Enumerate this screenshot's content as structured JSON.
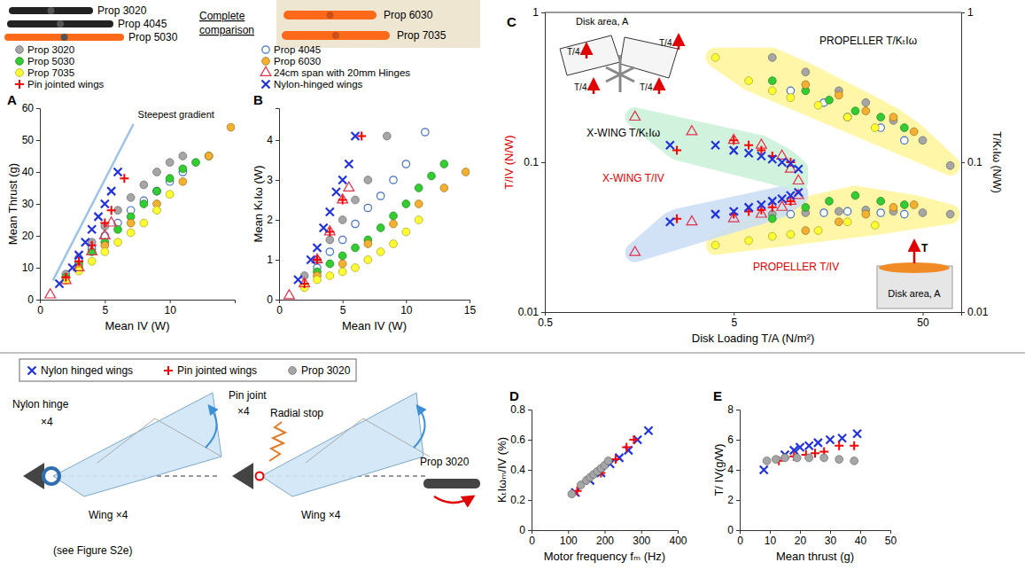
{
  "figure": {
    "photos": {
      "labels": [
        "Prop 3020",
        "Prop 4045",
        "Prop 5030",
        "Prop 6030",
        "Prop 7035"
      ],
      "heading": "Complete comparison"
    },
    "diagrams": {
      "nylon": {
        "label": "Nylon hinge",
        "count": "×4",
        "wing": "Wing ×4",
        "note": "(see Figure S2e)"
      },
      "pin": {
        "label": "Pin joint",
        "count": "×4",
        "stop": "Radial stop",
        "wing": "Wing ×4"
      },
      "prop": {
        "label": "Prop 3020"
      }
    }
  },
  "chart_data": [
    {
      "type": "scatter",
      "panel": "A",
      "xlabel": "Mean IV (W)",
      "ylabel": "Mean Thrust (g)",
      "xlim": [
        0,
        15
      ],
      "ylim": [
        0,
        60
      ],
      "xticks": [
        0,
        5,
        10
      ],
      "yticks": [
        0,
        10,
        20,
        30,
        40,
        50,
        60
      ],
      "grid": false,
      "legend": "top",
      "annotation": {
        "text": "Steepest gradient",
        "x": [
          1,
          7.2
        ],
        "y": [
          6,
          55
        ]
      },
      "series": [
        {
          "name": "Prop 3020",
          "color": "#a6a6a6",
          "marker": "circle",
          "x": [
            2,
            3,
            4,
            5,
            6,
            7,
            8,
            9,
            10,
            11
          ],
          "values": [
            8,
            13,
            18,
            23,
            28,
            32,
            36,
            40,
            43,
            45
          ]
        },
        {
          "name": "Prop 4045",
          "color": "#4472c4",
          "marker": "circle-open",
          "x": [
            3,
            4,
            5,
            6,
            7,
            8,
            9,
            10,
            11
          ],
          "values": [
            12,
            16,
            20,
            24,
            28,
            31,
            34,
            37,
            40
          ]
        },
        {
          "name": "Prop 5030",
          "color": "#33cc33",
          "marker": "circle",
          "x": [
            2,
            3,
            4,
            5,
            6,
            7,
            8,
            9,
            10,
            11,
            12,
            13
          ],
          "values": [
            7,
            11,
            15,
            18,
            22,
            26,
            30,
            34,
            38,
            41,
            43,
            45
          ]
        },
        {
          "name": "Prop 6030",
          "color": "#f4b030",
          "marker": "circle",
          "x": [
            3,
            5,
            7,
            9,
            11,
            13,
            14.7
          ],
          "values": [
            10,
            17,
            24,
            30,
            37,
            45,
            54
          ]
        },
        {
          "name": "Prop 7035",
          "color": "#ffff33",
          "marker": "circle",
          "x": [
            2,
            3,
            4,
            5,
            6,
            7,
            8,
            9,
            10
          ],
          "values": [
            6,
            9,
            12,
            15,
            18,
            21,
            24,
            28,
            33
          ]
        },
        {
          "name": "24cm span with 20mm Hinges",
          "color": "#e0304a",
          "marker": "triangle-open",
          "x": [
            0.8,
            2,
            3,
            4,
            5,
            5.5
          ],
          "values": [
            1.5,
            6,
            10,
            15,
            20,
            24
          ]
        },
        {
          "name": "Pin jointed wings",
          "color": "#ff0000",
          "marker": "plus",
          "x": [
            2,
            3,
            4,
            5,
            5.5,
            6.5
          ],
          "values": [
            7,
            12,
            17,
            24,
            28,
            38
          ]
        },
        {
          "name": "Nylon-hinged wings",
          "color": "#2233dd",
          "marker": "x",
          "x": [
            1.5,
            2.5,
            3,
            3.5,
            4,
            4.5,
            5,
            5.5,
            6
          ],
          "values": [
            5,
            10,
            14,
            18,
            22,
            26,
            30,
            34,
            40
          ]
        }
      ]
    },
    {
      "type": "scatter",
      "panel": "B",
      "xlabel": "Mean IV (W)",
      "ylabel": "Mean KₜIω (W)",
      "xlim": [
        0,
        15
      ],
      "ylim": [
        0,
        4.8
      ],
      "xticks": [
        0,
        5,
        10,
        15
      ],
      "yticks": [
        0,
        1,
        2,
        3,
        4
      ],
      "grid": false,
      "series": [
        {
          "color": "#a6a6a6",
          "marker": "circle",
          "x": [
            2,
            3,
            4,
            5,
            6,
            7,
            8.5
          ],
          "values": [
            0.6,
            1.0,
            1.5,
            2.0,
            2.5,
            3.0,
            4.1
          ]
        },
        {
          "color": "#4472c4",
          "marker": "circle-open",
          "x": [
            3,
            4,
            5,
            6,
            7,
            8,
            9,
            10,
            11.5
          ],
          "values": [
            0.8,
            1.2,
            1.5,
            1.9,
            2.3,
            2.6,
            3.0,
            3.4,
            4.2
          ]
        },
        {
          "color": "#33cc33",
          "marker": "circle",
          "x": [
            3,
            4,
            5,
            6,
            7,
            8,
            9,
            10,
            11,
            12,
            13
          ],
          "values": [
            0.7,
            0.9,
            1.1,
            1.3,
            1.5,
            1.8,
            2.1,
            2.4,
            2.8,
            3.1,
            3.4
          ]
        },
        {
          "color": "#f4b030",
          "marker": "circle",
          "x": [
            3,
            5,
            7,
            9,
            11,
            13,
            14.7
          ],
          "values": [
            0.6,
            0.9,
            1.4,
            1.9,
            2.4,
            2.8,
            3.2
          ]
        },
        {
          "color": "#ffff33",
          "marker": "circle",
          "x": [
            2,
            3,
            4,
            5,
            6,
            7,
            8,
            9,
            10,
            11
          ],
          "values": [
            0.3,
            0.5,
            0.6,
            0.7,
            0.8,
            1.0,
            1.2,
            1.4,
            1.7,
            2.0
          ]
        },
        {
          "color": "#e0304a",
          "marker": "triangle-open",
          "x": [
            0.8,
            2,
            3,
            4,
            5,
            5.5
          ],
          "values": [
            0.1,
            0.4,
            1.0,
            1.7,
            2.5,
            2.8
          ]
        },
        {
          "color": "#ff0000",
          "marker": "plus",
          "x": [
            2,
            3,
            4,
            5,
            6.5
          ],
          "values": [
            0.4,
            1.0,
            1.7,
            2.5,
            4.1
          ]
        },
        {
          "color": "#2233dd",
          "marker": "x",
          "x": [
            1.5,
            2.5,
            3,
            3.5,
            4,
            4.5,
            5,
            5.5,
            6
          ],
          "values": [
            0.5,
            1.0,
            1.3,
            1.8,
            2.2,
            2.7,
            3.0,
            3.4,
            4.1
          ]
        }
      ]
    },
    {
      "type": "scatter",
      "panel": "C",
      "log": true,
      "xlabel": "Disk Loading T/A (N/m²)",
      "ylabel": "T/IV (N/W)",
      "y2label": "T/KₜIω (N/W)",
      "xlim": [
        0.5,
        80
      ],
      "ylim": [
        0.01,
        1
      ],
      "y2lim": [
        0.01,
        1
      ],
      "xticks": [
        0.5,
        5,
        50
      ],
      "yticks": [
        0.01,
        0.1,
        1
      ],
      "y2ticks": [
        0.01,
        0.1,
        1
      ],
      "grid": false,
      "annotations": [
        "PROPELLER T/KₜIω",
        "X-WING T/KₜIω",
        "X-WING T/IV",
        "PROPELLER T/IV"
      ],
      "insets": {
        "x_wing": {
          "title": "Disk area, A",
          "forces": [
            "T/4",
            "T/4",
            "T/4",
            "T/4"
          ]
        },
        "propeller": {
          "title": "Disk area, A",
          "force": "T"
        }
      },
      "series": [
        {
          "color": "#a6a6a6",
          "marker": "circle",
          "x": [
            8,
            12,
            18,
            25,
            35,
            50,
            70
          ],
          "values": [
            0.045,
            0.046,
            0.047,
            0.048,
            0.047,
            0.046,
            0.045
          ]
        },
        {
          "color": "#a6a6a6",
          "marker": "circle",
          "axis": "y2",
          "x": [
            8,
            12,
            18,
            25,
            35,
            50,
            70
          ],
          "values": [
            0.5,
            0.4,
            0.3,
            0.25,
            0.19,
            0.14,
            0.095
          ]
        },
        {
          "color": "#4472c4",
          "marker": "circle-open",
          "x": [
            10,
            15,
            20,
            30,
            40
          ],
          "values": [
            0.045,
            0.046,
            0.047,
            0.046,
            0.045
          ]
        },
        {
          "color": "#4472c4",
          "marker": "circle-open",
          "axis": "y2",
          "x": [
            10,
            15,
            20,
            30,
            40
          ],
          "values": [
            0.3,
            0.25,
            0.2,
            0.17,
            0.14
          ]
        },
        {
          "color": "#33cc33",
          "marker": "circle",
          "x": [
            8,
            12,
            16,
            22,
            30,
            40
          ],
          "values": [
            0.042,
            0.05,
            0.055,
            0.06,
            0.055,
            0.052
          ]
        },
        {
          "color": "#33cc33",
          "marker": "circle",
          "axis": "y2",
          "x": [
            8,
            12,
            16,
            22,
            30,
            40
          ],
          "values": [
            0.35,
            0.3,
            0.26,
            0.22,
            0.2,
            0.17
          ]
        },
        {
          "color": "#f4b030",
          "marker": "circle",
          "x": [
            12,
            18,
            25,
            35,
            45
          ],
          "values": [
            0.035,
            0.04,
            0.045,
            0.05,
            0.052
          ]
        },
        {
          "color": "#f4b030",
          "marker": "circle",
          "axis": "y2",
          "x": [
            12,
            18,
            25,
            35,
            45
          ],
          "values": [
            0.33,
            0.28,
            0.22,
            0.2,
            0.16
          ]
        },
        {
          "color": "#ffff33",
          "marker": "circle",
          "x": [
            4,
            6,
            8,
            10,
            14,
            20,
            28
          ],
          "values": [
            0.028,
            0.03,
            0.032,
            0.033,
            0.035,
            0.04,
            0.038
          ]
        },
        {
          "color": "#ffff33",
          "marker": "circle",
          "axis": "y2",
          "x": [
            4,
            6,
            8,
            10,
            14,
            20,
            28
          ],
          "values": [
            0.5,
            0.35,
            0.3,
            0.27,
            0.24,
            0.2,
            0.17
          ]
        },
        {
          "color": "#e0304a",
          "marker": "triangle-open",
          "x": [
            1.5,
            3,
            5,
            7,
            9,
            10,
            11
          ],
          "values": [
            0.025,
            0.04,
            0.042,
            0.045,
            0.05,
            0.055,
            0.06
          ]
        },
        {
          "color": "#e0304a",
          "marker": "triangle-open",
          "axis": "y2",
          "x": [
            1.5,
            3,
            5,
            7,
            9,
            10,
            11
          ],
          "values": [
            0.2,
            0.16,
            0.14,
            0.13,
            0.11,
            0.09,
            0.075
          ]
        },
        {
          "color": "#ff0000",
          "marker": "plus",
          "x": [
            2.5,
            5,
            6,
            7,
            8,
            10
          ],
          "values": [
            0.042,
            0.045,
            0.047,
            0.048,
            0.05,
            0.055
          ]
        },
        {
          "color": "#ff0000",
          "marker": "plus",
          "axis": "y2",
          "x": [
            2.5,
            5,
            6,
            7,
            8,
            10
          ],
          "values": [
            0.12,
            0.14,
            0.13,
            0.12,
            0.11,
            0.1
          ]
        },
        {
          "color": "#2233dd",
          "marker": "x",
          "x": [
            2.3,
            4,
            5,
            6,
            7,
            8,
            9,
            10,
            11
          ],
          "values": [
            0.04,
            0.045,
            0.047,
            0.05,
            0.052,
            0.055,
            0.057,
            0.06,
            0.063
          ]
        },
        {
          "color": "#2233dd",
          "marker": "x",
          "axis": "y2",
          "x": [
            2.3,
            4,
            5,
            6,
            7,
            8,
            9,
            10,
            11
          ],
          "values": [
            0.13,
            0.13,
            0.12,
            0.115,
            0.11,
            0.105,
            0.1,
            0.098,
            0.09
          ]
        }
      ]
    },
    {
      "type": "scatter",
      "panel": "D",
      "xlabel": "Motor frequency fₘ (Hz)",
      "ylabel": "KₜIωₘ/IV (%)",
      "xlim": [
        0,
        400
      ],
      "ylim": [
        0,
        0.8
      ],
      "xticks": [
        0,
        100,
        200,
        300,
        400
      ],
      "yticks": [
        0,
        0.2,
        0.4,
        0.6,
        0.8
      ],
      "grid": false,
      "legend": "top",
      "series": [
        {
          "name": "Nylon hinged wings",
          "color": "#2233dd",
          "marker": "x",
          "x": [
            120,
            160,
            190,
            215,
            240,
            265,
            290,
            320
          ],
          "values": [
            0.25,
            0.33,
            0.38,
            0.44,
            0.48,
            0.53,
            0.6,
            0.66
          ]
        },
        {
          "name": "Pin jointed wings",
          "color": "#ff0000",
          "marker": "plus",
          "x": [
            125,
            190,
            230,
            260,
            280
          ],
          "values": [
            0.26,
            0.38,
            0.47,
            0.55,
            0.6
          ]
        },
        {
          "name": "Prop 3020",
          "color": "#a6a6a6",
          "marker": "circle",
          "x": [
            110,
            135,
            150,
            160,
            170,
            180,
            190,
            200,
            210
          ],
          "values": [
            0.24,
            0.3,
            0.33,
            0.35,
            0.37,
            0.39,
            0.41,
            0.43,
            0.46
          ]
        }
      ]
    },
    {
      "type": "scatter",
      "panel": "E",
      "xlabel": "Mean thrust (g)",
      "ylabel": "T/ IV(g/W)",
      "xlim": [
        0,
        50
      ],
      "ylim": [
        0,
        8
      ],
      "xticks": [
        0,
        10,
        20,
        30,
        40,
        50
      ],
      "yticks": [
        0,
        2,
        4,
        6,
        8
      ],
      "grid": false,
      "series": [
        {
          "color": "#2233dd",
          "marker": "x",
          "x": [
            8,
            15,
            18,
            20,
            23,
            26,
            30,
            34,
            39
          ],
          "values": [
            4.0,
            5.0,
            5.3,
            5.5,
            5.6,
            5.8,
            6.0,
            6.1,
            6.4
          ]
        },
        {
          "color": "#ff0000",
          "marker": "plus",
          "x": [
            13,
            18,
            22,
            25,
            28,
            33,
            38
          ],
          "values": [
            4.6,
            4.9,
            5.0,
            5.1,
            5.2,
            5.6,
            5.6
          ]
        },
        {
          "color": "#a6a6a6",
          "marker": "circle",
          "x": [
            9,
            12,
            15,
            19,
            23,
            28,
            33,
            38
          ],
          "values": [
            4.6,
            4.7,
            4.8,
            4.8,
            4.8,
            4.8,
            4.7,
            4.6
          ]
        }
      ]
    }
  ]
}
